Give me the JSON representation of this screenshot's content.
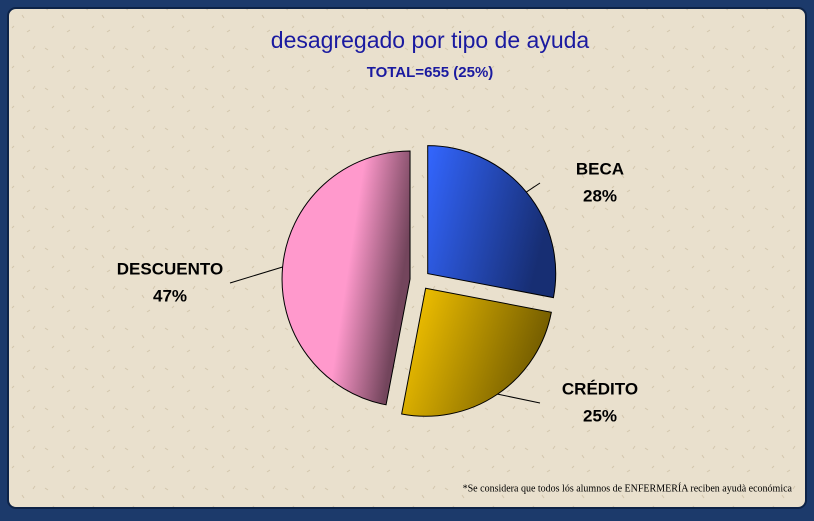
{
  "chart_data": {
    "type": "pie",
    "title": "desagregado por tipo de ayuda",
    "subtitle": "TOTAL=655 (25%)",
    "categories": [
      "BECA",
      "CRÉDITO",
      "DESCUENTO"
    ],
    "values": [
      28,
      25,
      47
    ],
    "value_labels": [
      "28%",
      "25%",
      "47%"
    ],
    "colors": [
      "#3366ff",
      "#ffcc00",
      "#ff99cc"
    ],
    "footnote": "*Se considera que todos lós alumnos de ENFERMERÍA reciben ayudà  económica"
  }
}
